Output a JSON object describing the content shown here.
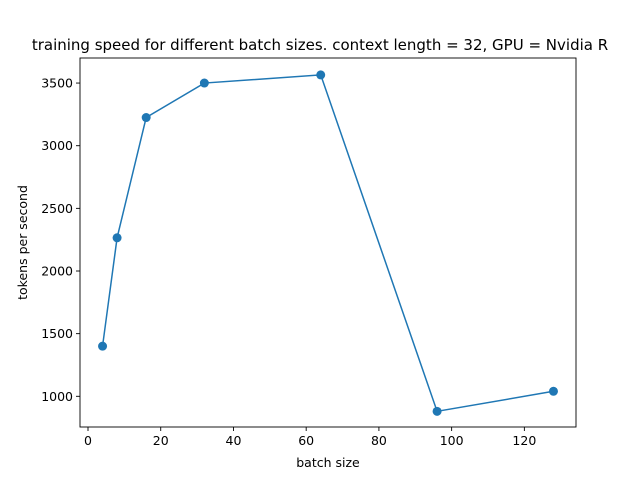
{
  "chart_data": {
    "type": "line",
    "title": "training speed for different batch sizes. context length = 32, GPU = Nvidia R",
    "xlabel": "batch size",
    "ylabel": "tokens per second",
    "xlim": [
      -2.2,
      134.2
    ],
    "ylim": [
      755,
      3700
    ],
    "xticks": [
      0,
      20,
      40,
      60,
      80,
      100,
      120
    ],
    "yticks": [
      1000,
      1500,
      2000,
      2500,
      3000,
      3500
    ],
    "grid": false,
    "legend": "none",
    "series": [
      {
        "color": "#1f77b4",
        "marker": "circle",
        "x": [
          4,
          8,
          16,
          32,
          64,
          96,
          128
        ],
        "y": [
          1400,
          2265,
          3225,
          3500,
          3565,
          880,
          1040
        ]
      }
    ]
  }
}
